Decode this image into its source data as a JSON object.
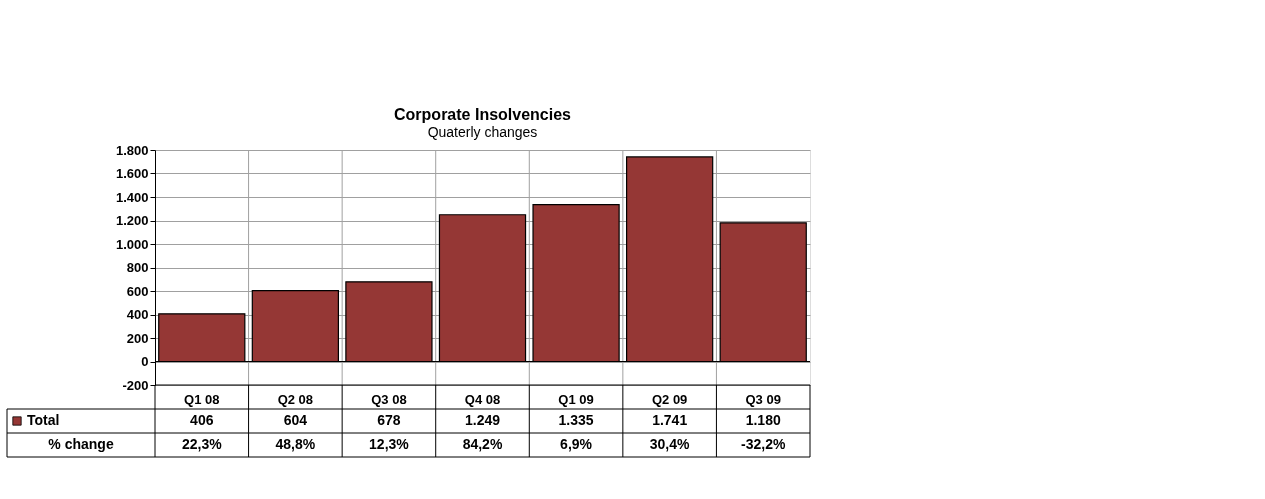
{
  "chart_data": {
    "type": "bar",
    "title": "Corporate Insolvencies",
    "subtitle": "Quaterly changes",
    "categories": [
      "Q1 08",
      "Q2 08",
      "Q3 08",
      "Q4 08",
      "Q1 09",
      "Q2 09",
      "Q3 09"
    ],
    "series": [
      {
        "name": "Total",
        "color": "#953735",
        "values": [
          406,
          604,
          678,
          1249,
          1335,
          1741,
          1180
        ]
      }
    ],
    "value_labels": [
      "406",
      "604",
      "678",
      "1.249",
      "1.335",
      "1.741",
      "1.180"
    ],
    "ylim": [
      -200,
      1800
    ],
    "yticks": [
      {
        "value": -200,
        "label": "-200"
      },
      {
        "value": 0,
        "label": "0"
      },
      {
        "value": 200,
        "label": "200"
      },
      {
        "value": 400,
        "label": "400"
      },
      {
        "value": 600,
        "label": "600"
      },
      {
        "value": 800,
        "label": "800"
      },
      {
        "value": 1000,
        "label": "1.000"
      },
      {
        "value": 1200,
        "label": "1.200"
      },
      {
        "value": 1400,
        "label": "1.400"
      },
      {
        "value": 1600,
        "label": "1.600"
      },
      {
        "value": 1800,
        "label": "1.800"
      }
    ],
    "grid": true,
    "legend": "bottom",
    "annotations": [
      "% change",
      "22,3%",
      "48,8%",
      "12,3%",
      "84,2%",
      "6,9%",
      "30,4%",
      "-32,2%"
    ]
  }
}
